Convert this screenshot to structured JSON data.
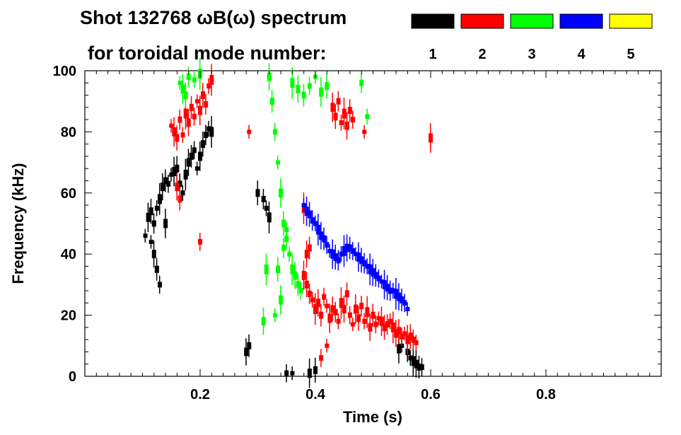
{
  "chart_data": {
    "type": "scatter",
    "title_line1": "Shot 132768 ωB(ω) spectrum",
    "title_line2": "for toroidal mode number:",
    "xlabel": "Time (s)",
    "ylabel": "Frequency (kHz)",
    "xlim": [
      0.0,
      1.0
    ],
    "ylim": [
      0,
      100
    ],
    "xticks": [
      0.2,
      0.4,
      0.6,
      0.8
    ],
    "xtick_labels": [
      "0.2",
      "0.4",
      "0.6",
      "0.8"
    ],
    "yticks": [
      0,
      20,
      40,
      60,
      80,
      100
    ],
    "ytick_labels": [
      "0",
      "20",
      "40",
      "60",
      "80",
      "100"
    ],
    "grid": false,
    "legend": [
      {
        "mode": "1",
        "color": "#000000"
      },
      {
        "mode": "2",
        "color": "#ff0000"
      },
      {
        "mode": "3",
        "color": "#00ff00"
      },
      {
        "mode": "4",
        "color": "#0000ff"
      },
      {
        "mode": "5",
        "color": "#ffff00"
      }
    ],
    "series": [
      {
        "name": "n=1",
        "color": "#000000",
        "points": [
          [
            0.105,
            46
          ],
          [
            0.11,
            52
          ],
          [
            0.115,
            54
          ],
          [
            0.12,
            50
          ],
          [
            0.125,
            55
          ],
          [
            0.13,
            58
          ],
          [
            0.135,
            62
          ],
          [
            0.14,
            64
          ],
          [
            0.145,
            63
          ],
          [
            0.15,
            66
          ],
          [
            0.155,
            67
          ],
          [
            0.16,
            68
          ],
          [
            0.165,
            63
          ],
          [
            0.17,
            60
          ],
          [
            0.175,
            66
          ],
          [
            0.18,
            70
          ],
          [
            0.185,
            72
          ],
          [
            0.19,
            74
          ],
          [
            0.195,
            68
          ],
          [
            0.2,
            72
          ],
          [
            0.205,
            76
          ],
          [
            0.21,
            79
          ],
          [
            0.215,
            81
          ],
          [
            0.22,
            80
          ],
          [
            0.12,
            40
          ],
          [
            0.125,
            35
          ],
          [
            0.13,
            30
          ],
          [
            0.115,
            44
          ],
          [
            0.14,
            50
          ],
          [
            0.3,
            60
          ],
          [
            0.31,
            58
          ],
          [
            0.315,
            55
          ],
          [
            0.32,
            52
          ],
          [
            0.28,
            8
          ],
          [
            0.285,
            10
          ],
          [
            0.35,
            1
          ],
          [
            0.36,
            1
          ],
          [
            0.39,
            1
          ],
          [
            0.4,
            2
          ],
          [
            0.56,
            8
          ],
          [
            0.565,
            6
          ],
          [
            0.57,
            5
          ],
          [
            0.575,
            4
          ],
          [
            0.58,
            3
          ],
          [
            0.585,
            3
          ],
          [
            0.55,
            10
          ],
          [
            0.545,
            9
          ]
        ]
      },
      {
        "name": "n=2",
        "color": "#ff0000",
        "points": [
          [
            0.15,
            82
          ],
          [
            0.155,
            80
          ],
          [
            0.16,
            78
          ],
          [
            0.165,
            84
          ],
          [
            0.17,
            79
          ],
          [
            0.175,
            86
          ],
          [
            0.18,
            83
          ],
          [
            0.185,
            88
          ],
          [
            0.19,
            85
          ],
          [
            0.195,
            90
          ],
          [
            0.2,
            87
          ],
          [
            0.205,
            92
          ],
          [
            0.21,
            89
          ],
          [
            0.215,
            95
          ],
          [
            0.22,
            97
          ],
          [
            0.16,
            62
          ],
          [
            0.165,
            58
          ],
          [
            0.2,
            44
          ],
          [
            0.285,
            80
          ],
          [
            0.38,
            33
          ],
          [
            0.385,
            30
          ],
          [
            0.39,
            27
          ],
          [
            0.395,
            25
          ],
          [
            0.4,
            22
          ],
          [
            0.405,
            24
          ],
          [
            0.41,
            20
          ],
          [
            0.415,
            26
          ],
          [
            0.42,
            23
          ],
          [
            0.425,
            19
          ],
          [
            0.43,
            22
          ],
          [
            0.435,
            21
          ],
          [
            0.44,
            18
          ],
          [
            0.445,
            24
          ],
          [
            0.45,
            22
          ],
          [
            0.455,
            27
          ],
          [
            0.46,
            20
          ],
          [
            0.465,
            17
          ],
          [
            0.47,
            22
          ],
          [
            0.475,
            19
          ],
          [
            0.48,
            23
          ],
          [
            0.485,
            18
          ],
          [
            0.49,
            21
          ],
          [
            0.495,
            16
          ],
          [
            0.5,
            20
          ],
          [
            0.505,
            17
          ],
          [
            0.51,
            19
          ],
          [
            0.515,
            18
          ],
          [
            0.52,
            16
          ],
          [
            0.525,
            17
          ],
          [
            0.53,
            18
          ],
          [
            0.535,
            16
          ],
          [
            0.54,
            14
          ],
          [
            0.545,
            15
          ],
          [
            0.55,
            13
          ],
          [
            0.555,
            14
          ],
          [
            0.56,
            12
          ],
          [
            0.565,
            13
          ],
          [
            0.57,
            12
          ],
          [
            0.575,
            11
          ],
          [
            0.38,
            55
          ],
          [
            0.385,
            40
          ],
          [
            0.39,
            42
          ],
          [
            0.41,
            6
          ],
          [
            0.42,
            10
          ],
          [
            0.43,
            88
          ],
          [
            0.435,
            85
          ],
          [
            0.44,
            90
          ],
          [
            0.445,
            83
          ],
          [
            0.45,
            86
          ],
          [
            0.455,
            82
          ],
          [
            0.46,
            87
          ],
          [
            0.465,
            84
          ],
          [
            0.485,
            80
          ],
          [
            0.6,
            78
          ]
        ]
      },
      {
        "name": "n=3",
        "color": "#00ff00",
        "points": [
          [
            0.165,
            96
          ],
          [
            0.17,
            94
          ],
          [
            0.175,
            92
          ],
          [
            0.18,
            98
          ],
          [
            0.19,
            97
          ],
          [
            0.2,
            99
          ],
          [
            0.32,
            98
          ],
          [
            0.325,
            90
          ],
          [
            0.33,
            80
          ],
          [
            0.335,
            70
          ],
          [
            0.34,
            60
          ],
          [
            0.345,
            50
          ],
          [
            0.35,
            45
          ],
          [
            0.355,
            40
          ],
          [
            0.36,
            35
          ],
          [
            0.365,
            33
          ],
          [
            0.37,
            30
          ],
          [
            0.375,
            28
          ],
          [
            0.33,
            20
          ],
          [
            0.34,
            25
          ],
          [
            0.335,
            35
          ],
          [
            0.345,
            42
          ],
          [
            0.35,
            48
          ],
          [
            0.36,
            96
          ],
          [
            0.37,
            94
          ],
          [
            0.38,
            92
          ],
          [
            0.39,
            95
          ],
          [
            0.4,
            98
          ],
          [
            0.41,
            93
          ],
          [
            0.42,
            95
          ],
          [
            0.48,
            96
          ],
          [
            0.49,
            85
          ],
          [
            0.315,
            35
          ],
          [
            0.31,
            18
          ]
        ]
      },
      {
        "name": "n=4",
        "color": "#0000ff",
        "points": [
          [
            0.38,
            56
          ],
          [
            0.385,
            54
          ],
          [
            0.39,
            53
          ],
          [
            0.395,
            51
          ],
          [
            0.4,
            50
          ],
          [
            0.405,
            48
          ],
          [
            0.41,
            46
          ],
          [
            0.415,
            45
          ],
          [
            0.42,
            43
          ],
          [
            0.425,
            41
          ],
          [
            0.43,
            40
          ],
          [
            0.435,
            39
          ],
          [
            0.44,
            38
          ],
          [
            0.445,
            40
          ],
          [
            0.45,
            41
          ],
          [
            0.455,
            42
          ],
          [
            0.46,
            42
          ],
          [
            0.465,
            41
          ],
          [
            0.47,
            40
          ],
          [
            0.475,
            39
          ],
          [
            0.48,
            38
          ],
          [
            0.485,
            37
          ],
          [
            0.49,
            36
          ],
          [
            0.495,
            35
          ],
          [
            0.5,
            34
          ],
          [
            0.505,
            33
          ],
          [
            0.51,
            32
          ],
          [
            0.515,
            31
          ],
          [
            0.52,
            30
          ],
          [
            0.525,
            29
          ],
          [
            0.53,
            28
          ],
          [
            0.535,
            28
          ],
          [
            0.54,
            27
          ],
          [
            0.545,
            26
          ],
          [
            0.55,
            25
          ],
          [
            0.555,
            24
          ],
          [
            0.56,
            22
          ]
        ]
      },
      {
        "name": "n=5",
        "color": "#ffff00",
        "points": []
      }
    ]
  }
}
